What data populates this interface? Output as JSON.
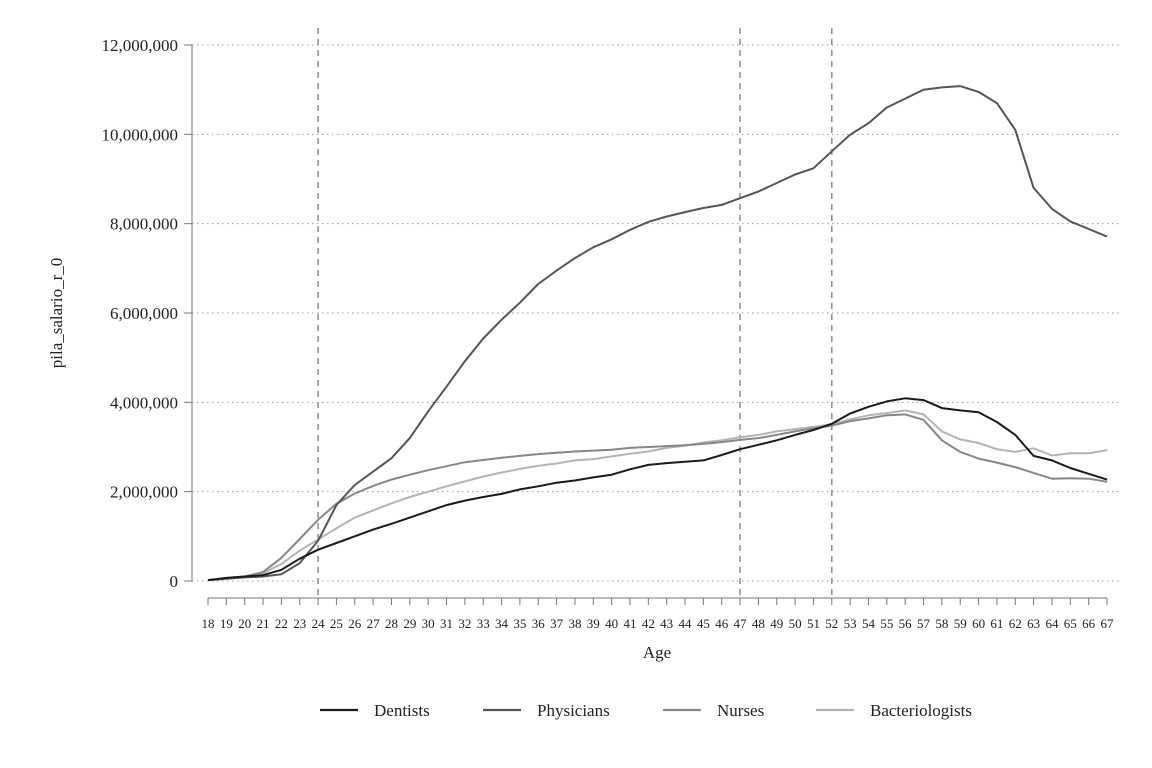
{
  "chart_data": {
    "type": "line",
    "xlabel": "Age",
    "ylabel": "pila_salario_r_0",
    "xlim": [
      18,
      67
    ],
    "ylim": [
      0,
      12000000
    ],
    "x": [
      18,
      19,
      20,
      21,
      22,
      23,
      24,
      25,
      26,
      27,
      28,
      29,
      30,
      31,
      32,
      33,
      34,
      35,
      36,
      37,
      38,
      39,
      40,
      41,
      42,
      43,
      44,
      45,
      46,
      47,
      48,
      49,
      50,
      51,
      52,
      53,
      54,
      55,
      56,
      57,
      58,
      59,
      60,
      61,
      62,
      63,
      64,
      65,
      66,
      67
    ],
    "x_tick_labels": [
      "18",
      "19",
      "20",
      "21",
      "22",
      "23",
      "24",
      "25",
      "26",
      "27",
      "28",
      "29",
      "30",
      "31",
      "32",
      "33",
      "34",
      "35",
      "36",
      "37",
      "38",
      "39",
      "40",
      "41",
      "42",
      "43",
      "44",
      "45",
      "46",
      "47",
      "48",
      "49",
      "50",
      "51",
      "52",
      "53",
      "54",
      "55",
      "56",
      "57",
      "58",
      "59",
      "60",
      "61",
      "62",
      "63",
      "64",
      "65",
      "66",
      "67"
    ],
    "y_ticks": [
      0,
      2000000,
      4000000,
      6000000,
      8000000,
      10000000,
      12000000
    ],
    "y_tick_labels": [
      "0",
      "2,000,000",
      "4,000,000",
      "6,000,000",
      "8,000,000",
      "10,000,000",
      "12,000,000"
    ],
    "vertical_reference_lines": [
      24,
      47,
      52
    ],
    "grid": "horizontal dotted",
    "legend_position": "bottom",
    "series": [
      {
        "name": "Dentists",
        "color": "#1a1a1a",
        "values": [
          20000,
          70000,
          100000,
          130000,
          250000,
          500000,
          700000,
          850000,
          1000000,
          1150000,
          1280000,
          1420000,
          1560000,
          1700000,
          1800000,
          1880000,
          1950000,
          2050000,
          2120000,
          2200000,
          2250000,
          2320000,
          2380000,
          2500000,
          2600000,
          2640000,
          2670000,
          2700000,
          2820000,
          2950000,
          3050000,
          3150000,
          3270000,
          3380000,
          3520000,
          3750000,
          3900000,
          4020000,
          4090000,
          4050000,
          3870000,
          3820000,
          3780000,
          3560000,
          3270000,
          2800000,
          2700000,
          2530000,
          2400000,
          2270000
        ]
      },
      {
        "name": "Physicians",
        "color": "#555555",
        "values": [
          20000,
          50000,
          80000,
          100000,
          150000,
          400000,
          900000,
          1700000,
          2150000,
          2450000,
          2750000,
          3200000,
          3800000,
          4350000,
          4920000,
          5430000,
          5850000,
          6230000,
          6650000,
          6950000,
          7230000,
          7470000,
          7650000,
          7860000,
          8040000,
          8160000,
          8260000,
          8350000,
          8420000,
          8570000,
          8720000,
          8910000,
          9100000,
          9240000,
          9620000,
          9990000,
          10250000,
          10600000,
          10800000,
          11000000,
          11050000,
          11080000,
          10950000,
          10700000,
          10100000,
          8800000,
          8330000,
          8050000,
          7880000,
          7710000
        ]
      },
      {
        "name": "Nurses",
        "color": "#878787",
        "values": [
          20000,
          60000,
          100000,
          200000,
          520000,
          940000,
          1370000,
          1730000,
          1960000,
          2130000,
          2270000,
          2380000,
          2480000,
          2570000,
          2660000,
          2710000,
          2760000,
          2800000,
          2840000,
          2870000,
          2900000,
          2920000,
          2940000,
          2980000,
          3000000,
          3020000,
          3040000,
          3070000,
          3110000,
          3160000,
          3200000,
          3270000,
          3350000,
          3420000,
          3480000,
          3580000,
          3640000,
          3710000,
          3730000,
          3610000,
          3150000,
          2890000,
          2740000,
          2650000,
          2550000,
          2420000,
          2290000,
          2300000,
          2290000,
          2220000
        ]
      },
      {
        "name": "Bacteriologists",
        "color": "#b4b4b4",
        "values": [
          20000,
          50000,
          90000,
          170000,
          380000,
          680000,
          930000,
          1180000,
          1420000,
          1580000,
          1740000,
          1880000,
          2000000,
          2120000,
          2230000,
          2340000,
          2430000,
          2510000,
          2580000,
          2630000,
          2700000,
          2730000,
          2790000,
          2850000,
          2900000,
          2980000,
          3030000,
          3100000,
          3150000,
          3220000,
          3270000,
          3350000,
          3400000,
          3450000,
          3510000,
          3620000,
          3710000,
          3760000,
          3820000,
          3730000,
          3350000,
          3170000,
          3090000,
          2950000,
          2890000,
          2970000,
          2810000,
          2860000,
          2860000,
          2930000
        ]
      }
    ]
  }
}
